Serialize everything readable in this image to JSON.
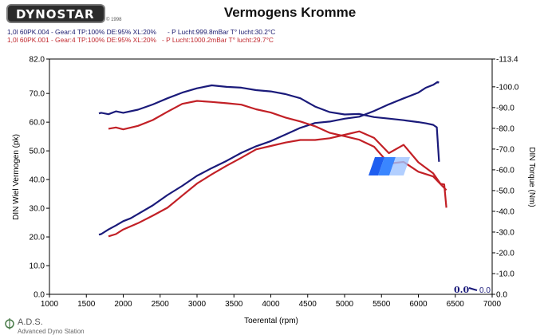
{
  "logo_text": "DYNOSTAR",
  "logo_mark": "© 1998",
  "header": {
    "title": "Vermogens Kromme",
    "run1": "1,0l 60PK.004 - Gear:4 TP:100% DE:95% XL:20%      - P Lucht:999.8mBar T° lucht:30.2°C",
    "run2": "1,0l 60PK.001 - Gear:4 TP:100% DE:95% XL:20%   - P Lucht:1000.2mBar T° lucht:29.7°C"
  },
  "footer": {
    "brand": "A.D.S.",
    "subtitle": "Advanced Dyno Station"
  },
  "readout": {
    "left": "0.0",
    "right": "0.0"
  },
  "colors": {
    "run1": "#1a1a7a",
    "run2": "#c22026",
    "plot_bg": "#ffffff",
    "frame": "#000000"
  },
  "chart_data": {
    "type": "line",
    "xlabel": "Toerental (rpm)",
    "ylabel_left": "DIN Wiel Vermogen (pk)",
    "ylabel_right": "DIN Torque (Nm)",
    "xlim": [
      1000,
      7000
    ],
    "ylim_left": [
      0,
      82
    ],
    "ylim_right": [
      0,
      113.4
    ],
    "x_ticks": [
      "1000",
      "1500",
      "2000",
      "2500",
      "3000",
      "3500",
      "4000",
      "4500",
      "5000",
      "5500",
      "6000",
      "6500",
      "7000"
    ],
    "y_ticks_left": [
      "0.0",
      "10.0",
      "20.0",
      "30.0",
      "40.0",
      "50.0",
      "60.0",
      "70.0",
      "82.0"
    ],
    "y_ticks_right": [
      "0.0",
      "-10.0",
      "-20.0",
      "-30.0",
      "-40.0",
      "-50.0",
      "-60.0",
      "-70.0",
      "-80.0",
      "-90.0",
      "-100.0",
      "-113.4"
    ],
    "grid": false,
    "series": [
      {
        "name": "1,0l 60PK.004",
        "quantity": "power",
        "axis": "left",
        "color": "#1a1a7a",
        "x": [
          1670,
          1700,
          1800,
          1900,
          2000,
          2100,
          2200,
          2400,
          2600,
          2800,
          3000,
          3200,
          3400,
          3600,
          3800,
          4000,
          4200,
          4400,
          4600,
          4800,
          5000,
          5200,
          5400,
          5600,
          5800,
          6000,
          6100,
          6200,
          6260,
          6280
        ],
        "y": [
          20.8,
          21.0,
          22.6,
          24.0,
          25.5,
          26.5,
          28.0,
          31.0,
          34.6,
          37.8,
          41.3,
          44.0,
          46.5,
          49.3,
          51.6,
          53.4,
          55.7,
          58.0,
          59.7,
          60.2,
          61.2,
          61.9,
          63.9,
          66.2,
          68.3,
          70.3,
          72.0,
          73.0,
          74.0,
          73.8
        ]
      },
      {
        "name": "1,0l 60PK.004",
        "quantity": "torque",
        "axis": "right",
        "color": "#1a1a7a",
        "x": [
          1670,
          1700,
          1800,
          1900,
          2000,
          2200,
          2400,
          2600,
          2800,
          3000,
          3200,
          3400,
          3600,
          3800,
          4000,
          4200,
          4400,
          4600,
          4800,
          5000,
          5200,
          5400,
          5600,
          5800,
          6000,
          6100,
          6200,
          6250,
          6280
        ],
        "y": [
          87.2,
          87.5,
          86.8,
          88.2,
          87.5,
          89.0,
          91.5,
          94.5,
          97.2,
          99.3,
          100.7,
          100.0,
          99.6,
          98.4,
          97.8,
          96.5,
          94.5,
          90.5,
          87.8,
          86.7,
          86.9,
          85.4,
          84.7,
          83.9,
          83.0,
          82.4,
          81.7,
          80.5,
          63.9
        ]
      },
      {
        "name": "1,0l 60PK.001",
        "quantity": "power",
        "axis": "left",
        "color": "#c22026",
        "x": [
          1800,
          1900,
          2000,
          2200,
          2400,
          2600,
          2800,
          3000,
          3200,
          3400,
          3600,
          3800,
          4000,
          4200,
          4400,
          4600,
          4800,
          5000,
          5200,
          5400,
          5600,
          5800,
          6000,
          6200,
          6300,
          6350,
          6380
        ],
        "y": [
          20.2,
          21.0,
          22.6,
          24.8,
          27.4,
          30.2,
          34.4,
          38.6,
          41.8,
          44.8,
          47.6,
          50.5,
          51.7,
          52.9,
          53.8,
          53.8,
          54.4,
          55.6,
          56.8,
          54.5,
          49.2,
          52.1,
          46.0,
          42.2,
          38.5,
          38.3,
          30.2
        ]
      },
      {
        "name": "1,0l 60PK.001",
        "quantity": "torque",
        "axis": "right",
        "color": "#c22026",
        "x": [
          1800,
          1900,
          2000,
          2200,
          2400,
          2600,
          2800,
          3000,
          3200,
          3400,
          3600,
          3800,
          4000,
          4200,
          4400,
          4600,
          4800,
          5000,
          5200,
          5400,
          5600,
          5800,
          6000,
          6200,
          6380
        ],
        "y": [
          79.8,
          80.4,
          79.5,
          81.2,
          84.0,
          88.0,
          91.8,
          93.2,
          92.7,
          92.1,
          91.4,
          89.2,
          87.6,
          85.2,
          83.3,
          81.0,
          77.8,
          76.2,
          74.5,
          71.1,
          63.0,
          63.8,
          59.1,
          56.8,
          50.2
        ]
      }
    ]
  }
}
